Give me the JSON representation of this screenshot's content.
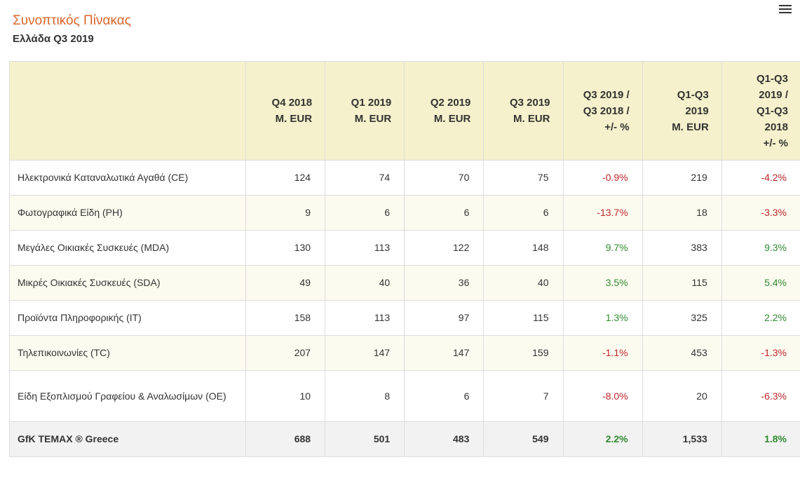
{
  "header": {
    "title": "Συνοπτικός Πίνακας",
    "subtitle": "Ελλάδα Q3 2019"
  },
  "menu": {
    "icon": "hamburger-menu-icon"
  },
  "table": {
    "columns": [
      "",
      "Q4 2018\nM. EUR",
      "Q1 2019\nM. EUR",
      "Q2 2019\nM. EUR",
      "Q3 2019\nM. EUR",
      "Q3 2019 /\nQ3 2018 /\n+/- %",
      "Q1-Q3\n2019\nM. EUR",
      "Q1-Q3\n2019 /\nQ1-Q3\n2018\n+/- %"
    ],
    "rows": [
      [
        "Ηλεκτρονικά Καταναλωτικά Αγαθά (CE)",
        "124",
        "74",
        "70",
        "75",
        "-0.9%",
        "219",
        "-4.2%"
      ],
      [
        "Φωτογραφικά Είδη (PH)",
        "9",
        "6",
        "6",
        "6",
        "-13.7%",
        "18",
        "-3.3%"
      ],
      [
        "Μεγάλες Οικιακές Συσκευές (MDA)",
        "130",
        "113",
        "122",
        "148",
        "9.7%",
        "383",
        "9.3%"
      ],
      [
        "Μικρές Οικιακές Συσκευές (SDA)",
        "49",
        "40",
        "36",
        "40",
        "3.5%",
        "115",
        "5.4%"
      ],
      [
        "Προϊόντα Πληροφορικής (IT)",
        "158",
        "113",
        "97",
        "115",
        "1.3%",
        "325",
        "2.2%"
      ],
      [
        "Τηλεπικοινωνίες (TC)",
        "207",
        "147",
        "147",
        "159",
        "-1.1%",
        "453",
        "-1.3%"
      ],
      [
        "Είδη Εξοπλισμού Γραφείου & Αναλωσίμων (OE)",
        "10",
        "8",
        "6",
        "7",
        "-8.0%",
        "20",
        "-6.3%"
      ],
      [
        "GfK TEMAX ® Greece",
        "688",
        "501",
        "483",
        "549",
        "2.2%",
        "1,533",
        "1.8%"
      ]
    ],
    "colors": {
      "negative": "#c0262c",
      "positive": "#2f8a2f",
      "header_bg": "#f5f1cc",
      "title": "#d9652b"
    }
  }
}
